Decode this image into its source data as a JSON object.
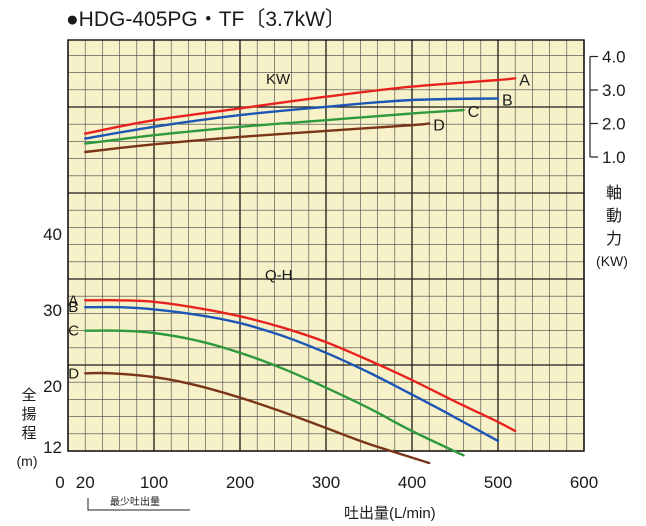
{
  "chart_data": {
    "type": "line",
    "title": "●HDG-405PG・TF〔3.7kW〕",
    "xlabel": "吐出量(L/min)",
    "xlim": [
      0,
      600
    ],
    "x_ticks": [
      {
        "value": 0,
        "label": "0"
      },
      {
        "value": 20,
        "label": "20"
      },
      {
        "value": 100,
        "label": "100"
      },
      {
        "value": 200,
        "label": "200"
      },
      {
        "value": 300,
        "label": "300"
      },
      {
        "value": 400,
        "label": "400"
      },
      {
        "value": 500,
        "label": "500"
      },
      {
        "value": 600,
        "label": "600"
      }
    ],
    "min_flow_label": "最少吐出量",
    "min_flow_value": 20,
    "head_axis": {
      "label_chars": [
        "全",
        "揚",
        "程"
      ],
      "unit": "(m)",
      "ticks": [
        {
          "value": 12,
          "label": "12"
        },
        {
          "value": 20,
          "label": "20"
        },
        {
          "value": 30,
          "label": "30"
        },
        {
          "value": 40,
          "label": "40"
        }
      ]
    },
    "power_axis": {
      "label_chars": [
        "軸",
        "動",
        "力"
      ],
      "unit": "(KW)",
      "ticks": [
        {
          "value": 1.0,
          "label": "1.0"
        },
        {
          "value": 2.0,
          "label": "2.0"
        },
        {
          "value": 3.0,
          "label": "3.0"
        },
        {
          "value": 4.0,
          "label": "4.0"
        }
      ]
    },
    "kw_group_label": "KW",
    "qh_group_label": "Q-H",
    "kw_curves": [
      {
        "name": "A",
        "color": "#e8231f",
        "points": [
          [
            20,
            1.7
          ],
          [
            100,
            2.1
          ],
          [
            200,
            2.45
          ],
          [
            300,
            2.8
          ],
          [
            400,
            3.1
          ],
          [
            500,
            3.3
          ],
          [
            520,
            3.35
          ]
        ]
      },
      {
        "name": "B",
        "color": "#1d56b5",
        "points": [
          [
            20,
            1.55
          ],
          [
            100,
            1.9
          ],
          [
            200,
            2.25
          ],
          [
            300,
            2.5
          ],
          [
            400,
            2.7
          ],
          [
            500,
            2.75
          ]
        ]
      },
      {
        "name": "C",
        "color": "#2f9a3d",
        "points": [
          [
            20,
            1.4
          ],
          [
            100,
            1.65
          ],
          [
            200,
            1.9
          ],
          [
            300,
            2.1
          ],
          [
            400,
            2.3
          ],
          [
            460,
            2.4
          ]
        ]
      },
      {
        "name": "D",
        "color": "#7a3518",
        "points": [
          [
            20,
            1.15
          ],
          [
            100,
            1.38
          ],
          [
            200,
            1.6
          ],
          [
            300,
            1.78
          ],
          [
            400,
            1.95
          ],
          [
            420,
            2.0
          ]
        ]
      }
    ],
    "qh_curves": [
      {
        "name": "A",
        "color": "#e8231f",
        "points": [
          [
            20,
            31.3
          ],
          [
            60,
            31.3
          ],
          [
            100,
            31.1
          ],
          [
            150,
            30.3
          ],
          [
            200,
            29.2
          ],
          [
            250,
            27.7
          ],
          [
            300,
            25.8
          ],
          [
            350,
            23.4
          ],
          [
            400,
            20.8
          ],
          [
            450,
            18.0
          ],
          [
            500,
            15.3
          ],
          [
            520,
            14.1
          ]
        ]
      },
      {
        "name": "B",
        "color": "#1d56b5",
        "points": [
          [
            20,
            30.4
          ],
          [
            60,
            30.4
          ],
          [
            100,
            30.1
          ],
          [
            150,
            29.4
          ],
          [
            200,
            28.3
          ],
          [
            250,
            26.6
          ],
          [
            300,
            24.4
          ],
          [
            350,
            21.8
          ],
          [
            400,
            18.9
          ],
          [
            450,
            15.9
          ],
          [
            500,
            12.8
          ]
        ]
      },
      {
        "name": "C",
        "color": "#2f9a3d",
        "points": [
          [
            20,
            27.3
          ],
          [
            60,
            27.3
          ],
          [
            100,
            27.0
          ],
          [
            150,
            26.0
          ],
          [
            200,
            24.4
          ],
          [
            250,
            22.3
          ],
          [
            300,
            19.8
          ],
          [
            350,
            17.1
          ],
          [
            400,
            14.1
          ],
          [
            460,
            10.9
          ]
        ]
      },
      {
        "name": "D",
        "color": "#7a3518",
        "points": [
          [
            20,
            21.7
          ],
          [
            50,
            21.7
          ],
          [
            100,
            21.2
          ],
          [
            150,
            20.1
          ],
          [
            200,
            18.5
          ],
          [
            250,
            16.6
          ],
          [
            300,
            14.5
          ],
          [
            350,
            12.4
          ],
          [
            420,
            9.9
          ]
        ]
      }
    ]
  }
}
